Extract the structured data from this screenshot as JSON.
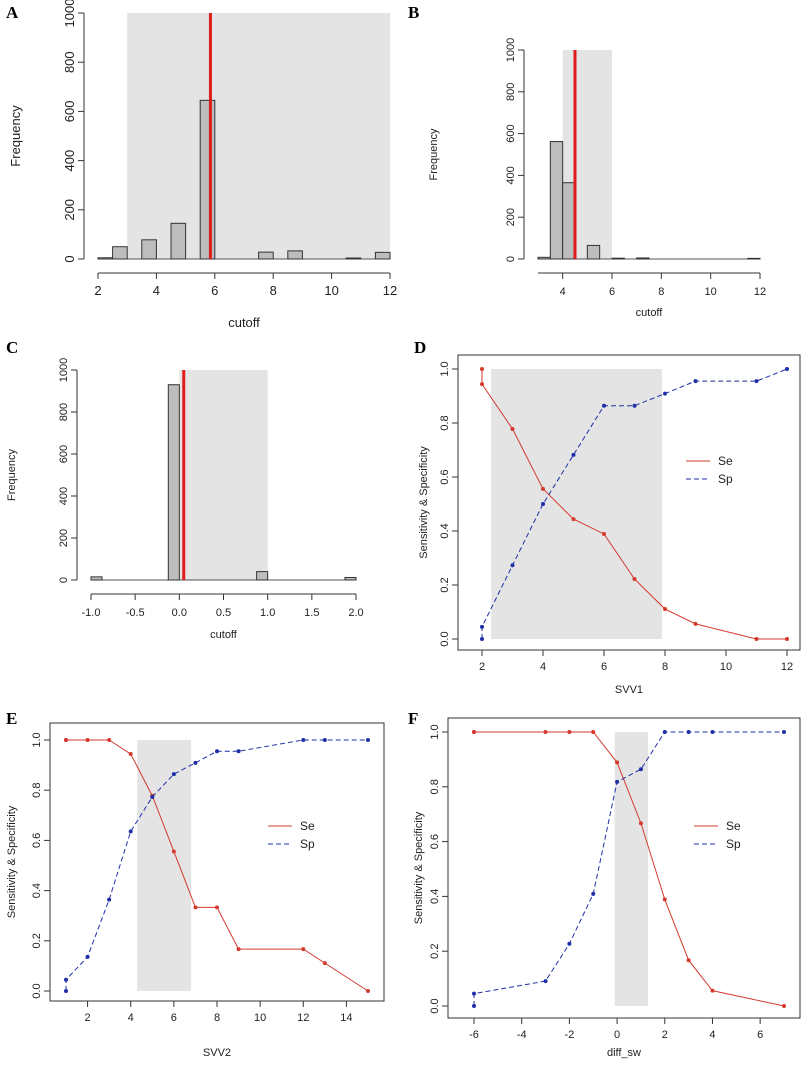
{
  "colors": {
    "shade": "#e4e4e4",
    "bar": "#bdbdbd",
    "cutoff_line": "#e01b1b",
    "se": "#d43a2e",
    "sp": "#1f2fa8",
    "axis": "#333333"
  },
  "chart_data": [
    {
      "id": "A",
      "type": "bar",
      "title": "",
      "xlabel": "cutoff",
      "ylabel": "Frequency",
      "xlim": [
        2,
        12
      ],
      "ylim": [
        0,
        1000
      ],
      "xticks": [
        "2",
        "4",
        "6",
        "8",
        "10",
        "12"
      ],
      "yticks": [
        "0",
        "200",
        "400",
        "600",
        "800",
        "1000"
      ],
      "bin_width": 0.5,
      "bars": [
        {
          "x": 2.25,
          "value": 5
        },
        {
          "x": 2.75,
          "value": 50
        },
        {
          "x": 3.75,
          "value": 78
        },
        {
          "x": 4.75,
          "value": 145
        },
        {
          "x": 5.75,
          "value": 645
        },
        {
          "x": 7.75,
          "value": 28
        },
        {
          "x": 8.75,
          "value": 33
        },
        {
          "x": 10.75,
          "value": 4
        },
        {
          "x": 11.75,
          "value": 27
        }
      ],
      "shade": [
        3.0,
        12.0
      ],
      "vline": 5.85
    },
    {
      "id": "B",
      "type": "bar",
      "title": "",
      "xlabel": "cutoff",
      "ylabel": "Frequency",
      "xlim": [
        3,
        12
      ],
      "ylim": [
        0,
        1000
      ],
      "xticks": [
        "4",
        "6",
        "8",
        "10",
        "12"
      ],
      "yticks": [
        "0",
        "200",
        "400",
        "600",
        "800",
        "1000"
      ],
      "bin_width": 0.5,
      "bars": [
        {
          "x": 3.25,
          "value": 8
        },
        {
          "x": 3.75,
          "value": 562
        },
        {
          "x": 4.25,
          "value": 365
        },
        {
          "x": 5.25,
          "value": 65
        },
        {
          "x": 6.25,
          "value": 4
        },
        {
          "x": 7.25,
          "value": 5
        },
        {
          "x": 11.75,
          "value": 3
        }
      ],
      "shade": [
        4.0,
        6.0
      ],
      "vline": 4.5
    },
    {
      "id": "C",
      "type": "bar",
      "title": "",
      "xlabel": "cutoff",
      "ylabel": "Frequency",
      "xlim": [
        -1.0,
        2.0
      ],
      "ylim": [
        0,
        1000
      ],
      "xticks": [
        "-1.0",
        "-0.5",
        "0.0",
        "0.5",
        "1.0",
        "1.5",
        "2.0"
      ],
      "yticks": [
        "0",
        "200",
        "400",
        "600",
        "800",
        "1000"
      ],
      "bin_width": 0.125,
      "bars": [
        {
          "x": -0.9375,
          "value": 15
        },
        {
          "x": -0.0625,
          "value": 930
        },
        {
          "x": 0.9375,
          "value": 40
        },
        {
          "x": 1.9375,
          "value": 12
        }
      ],
      "shade": [
        0.0,
        1.0
      ],
      "vline": 0.05
    },
    {
      "id": "D",
      "type": "line",
      "title": "",
      "xlabel": "SVV1",
      "ylabel": "Sensitivity & Specificity",
      "xlim": [
        2,
        12
      ],
      "ylim": [
        0,
        1
      ],
      "xticks": [
        "2",
        "4",
        "6",
        "8",
        "10",
        "12"
      ],
      "yticks": [
        "0.0",
        "0.2",
        "0.4",
        "0.6",
        "0.8",
        "1.0"
      ],
      "legend_entries": [
        "Se",
        "Sp"
      ],
      "legend_position": "right",
      "series": [
        {
          "name": "Se",
          "x": [
            2,
            2,
            3,
            4,
            5,
            6,
            7,
            8,
            9,
            11,
            12
          ],
          "values": [
            1.0,
            0.944,
            0.778,
            0.556,
            0.444,
            0.389,
            0.222,
            0.111,
            0.056,
            0.0,
            0.0
          ]
        },
        {
          "name": "Sp",
          "x": [
            2,
            2,
            3,
            4,
            5,
            6,
            7,
            8,
            9,
            11,
            12
          ],
          "values": [
            0.0,
            0.045,
            0.273,
            0.5,
            0.682,
            0.864,
            0.864,
            0.909,
            0.955,
            0.955,
            1.0
          ]
        }
      ],
      "shade": [
        2.3,
        7.9
      ]
    },
    {
      "id": "E",
      "type": "line",
      "title": "",
      "xlabel": "SVV2",
      "ylabel": "Sensitivity & Specificity",
      "xlim": [
        1,
        15
      ],
      "ylim": [
        0,
        1
      ],
      "xticks": [
        "2",
        "4",
        "6",
        "8",
        "10",
        "12",
        "14"
      ],
      "yticks": [
        "0.0",
        "0.2",
        "0.4",
        "0.6",
        "0.8",
        "1.0"
      ],
      "legend_entries": [
        "Se",
        "Sp"
      ],
      "legend_position": "right",
      "series": [
        {
          "name": "Se",
          "x": [
            1,
            1,
            2,
            3,
            4,
            5,
            6,
            7,
            8,
            9,
            12,
            13,
            15
          ],
          "values": [
            1.0,
            1.0,
            1.0,
            1.0,
            0.944,
            0.778,
            0.556,
            0.333,
            0.333,
            0.167,
            0.167,
            0.111,
            0.0
          ]
        },
        {
          "name": "Sp",
          "x": [
            1,
            1,
            2,
            3,
            4,
            5,
            6,
            7,
            8,
            9,
            12,
            13,
            15
          ],
          "values": [
            0.0,
            0.045,
            0.136,
            0.364,
            0.636,
            0.773,
            0.864,
            0.909,
            0.955,
            0.955,
            1.0,
            1.0,
            1.0
          ]
        }
      ],
      "shade": [
        4.3,
        6.8
      ]
    },
    {
      "id": "F",
      "type": "line",
      "title": "",
      "xlabel": "diff_sw",
      "ylabel": "Sensitivity & Specificity",
      "xlim": [
        -6,
        7
      ],
      "ylim": [
        0,
        1
      ],
      "xticks": [
        "-6",
        "-4",
        "-2",
        "0",
        "2",
        "4",
        "6"
      ],
      "yticks": [
        "0.0",
        "0.2",
        "0.4",
        "0.6",
        "0.8",
        "1.0"
      ],
      "legend_entries": [
        "Se",
        "Sp"
      ],
      "legend_position": "right",
      "series": [
        {
          "name": "Se",
          "x": [
            -6,
            -6,
            -3,
            -2,
            -1,
            0,
            1,
            2,
            3,
            4,
            7
          ],
          "values": [
            1.0,
            1.0,
            1.0,
            1.0,
            1.0,
            0.889,
            0.667,
            0.389,
            0.167,
            0.056,
            0.0
          ]
        },
        {
          "name": "Sp",
          "x": [
            -6,
            -6,
            -3,
            -2,
            -1,
            0,
            1,
            2,
            3,
            4,
            7
          ],
          "values": [
            0.0,
            0.045,
            0.091,
            0.227,
            0.409,
            0.818,
            0.864,
            1.0,
            1.0,
            1.0,
            1.0
          ]
        }
      ],
      "shade": [
        -0.1,
        1.3
      ]
    }
  ]
}
